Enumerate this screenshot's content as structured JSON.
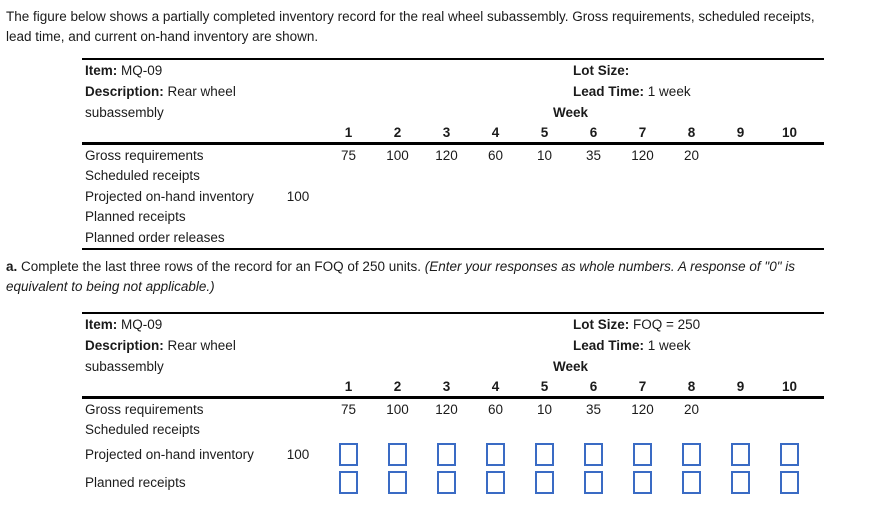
{
  "intro": {
    "line1": "The figure below shows a partially completed inventory record for the real wheel subassembly. Gross requirements, scheduled receipts,",
    "line2": "lead time, and current on-hand inventory are shown."
  },
  "question": {
    "label": "a.",
    "text": "Complete the last three rows of the record for an FOQ of 250 units.",
    "note_line1": "(Enter your responses as whole numbers. A response of \"0\" is",
    "note_line2": "equivalent to being not applicable.)"
  },
  "record1": {
    "item_label": "Item:",
    "item_value": "MQ-09",
    "description_label": "Description:",
    "description_value": "Rear wheel",
    "description_value_line2": "subassembly",
    "lot_size_label": "Lot Size:",
    "lot_size_value": "",
    "lead_time_label": "Lead Time:",
    "lead_time_value": "1 week",
    "week_header": "Week",
    "week_numbers": [
      "1",
      "2",
      "3",
      "4",
      "5",
      "6",
      "7",
      "8",
      "9",
      "10"
    ],
    "rows": {
      "gross_requirements": {
        "label": "Gross requirements",
        "initial": "",
        "values": [
          "75",
          "100",
          "120",
          "60",
          "10",
          "35",
          "120",
          "20",
          "",
          ""
        ]
      },
      "scheduled_receipts": {
        "label": "Scheduled receipts",
        "initial": "",
        "values": [
          "",
          "",
          "",
          "",
          "",
          "",
          "",
          "",
          "",
          ""
        ]
      },
      "projected_on_hand": {
        "label": "Projected on-hand inventory",
        "initial": "100",
        "values": [
          "",
          "",
          "",
          "",
          "",
          "",
          "",
          "",
          "",
          ""
        ]
      },
      "planned_receipts": {
        "label": "Planned receipts",
        "initial": "",
        "values": [
          "",
          "",
          "",
          "",
          "",
          "",
          "",
          "",
          "",
          ""
        ]
      },
      "planned_order_releases": {
        "label": "Planned order releases",
        "initial": "",
        "values": [
          "",
          "",
          "",
          "",
          "",
          "",
          "",
          "",
          "",
          ""
        ]
      }
    }
  },
  "record2": {
    "item_label": "Item:",
    "item_value": "MQ-09",
    "description_label": "Description:",
    "description_value": "Rear wheel",
    "description_value_line2": "subassembly",
    "lot_size_label": "Lot Size:",
    "lot_size_value": "FOQ = 250",
    "lead_time_label": "Lead Time:",
    "lead_time_value": "1 week",
    "week_header": "Week",
    "week_numbers": [
      "1",
      "2",
      "3",
      "4",
      "5",
      "6",
      "7",
      "8",
      "9",
      "10"
    ],
    "rows": {
      "gross_requirements": {
        "label": "Gross requirements",
        "initial": "",
        "values": [
          "75",
          "100",
          "120",
          "60",
          "10",
          "35",
          "120",
          "20",
          "",
          ""
        ]
      },
      "scheduled_receipts": {
        "label": "Scheduled receipts",
        "initial": "",
        "values": [
          "",
          "",
          "",
          "",
          "",
          "",
          "",
          "",
          "",
          ""
        ]
      },
      "projected_on_hand": {
        "label": "Projected on-hand inventory",
        "initial": "100",
        "input_values": [
          "",
          "",
          "",
          "",
          "",
          "",
          "",
          "",
          "",
          ""
        ]
      },
      "planned_receipts": {
        "label": "Planned receipts",
        "initial": "",
        "input_values": [
          "",
          "",
          "",
          "",
          "",
          "",
          "",
          "",
          "",
          ""
        ]
      }
    }
  },
  "colors": {
    "input_border": "#3a6bc4",
    "text": "#1b1b1b",
    "table_line": "#000000"
  }
}
